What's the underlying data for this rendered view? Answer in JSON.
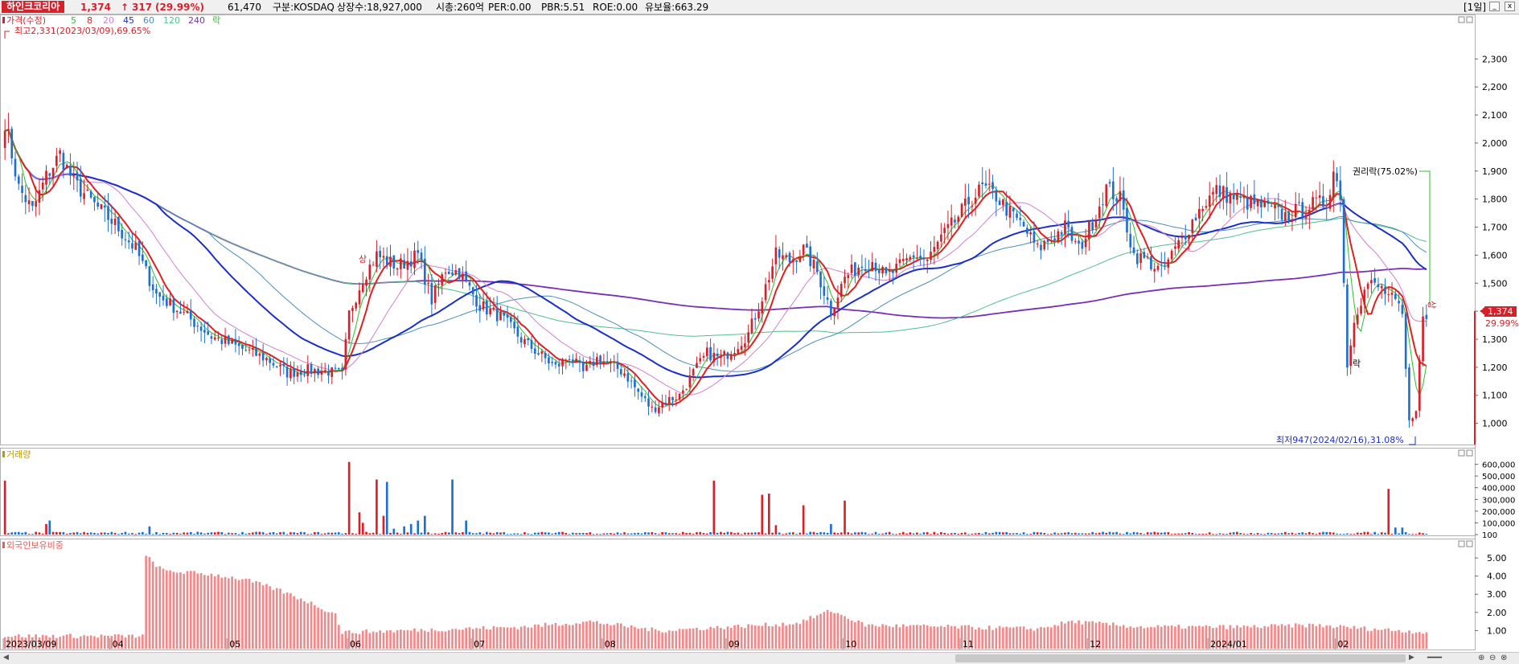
{
  "header": {
    "stock_name": "하인크코리아",
    "price": "1,374",
    "change_arrow": "↑",
    "change": "317",
    "change_pct": "(29.99%)",
    "volume": "61,470",
    "market": "구분:KOSDAQ",
    "shares": "상장수:18,927,000",
    "market_cap": "시총:260억",
    "per": "PER:0.00",
    "pbr": "PBR:5.51",
    "roe": "ROE:0.00",
    "float_ratio": "유보율:663.29",
    "period_button": "[1일]",
    "win_min": "_",
    "win_max": "□",
    "win_close": "x"
  },
  "chart_data": [
    {
      "type": "candlestick",
      "legend": [
        {
          "label": "가격(수정)",
          "color": "#d8202a"
        },
        {
          "label": "5",
          "color": "#2bbf2b"
        },
        {
          "label": "8",
          "color": "#e02020"
        },
        {
          "label": "20",
          "color": "#d080d0"
        },
        {
          "label": "45",
          "color": "#1a2fc8"
        },
        {
          "label": "60",
          "color": "#4a90b8"
        },
        {
          "label": "120",
          "color": "#4fbf8f"
        },
        {
          "label": "240",
          "color": "#7a2fb8"
        },
        {
          "label": "락",
          "color": "#2bbf2b"
        }
      ],
      "ma_colors": {
        "5": "#2bbf2b",
        "8": "#e02020",
        "20": "#d080d0",
        "45": "#1a2fc8",
        "60": "#4a90b8",
        "120": "#4fbf8f",
        "240": "#7a2fb8"
      },
      "ylim": [
        930,
        2450
      ],
      "y_ticks": [
        1000,
        1100,
        1200,
        1300,
        1400,
        1500,
        1600,
        1700,
        1800,
        1900,
        2000,
        2100,
        2200,
        2300
      ],
      "y_tick_labels": [
        "1,000",
        "1,100",
        "1,200",
        "1,300",
        "1,400",
        "1,500",
        "1,600",
        "1,700",
        "1,800",
        "1,900",
        "2,000",
        "2,100",
        "2,200",
        "2,300"
      ],
      "current_price_label": "1,374",
      "current_pct_label": "29.99%",
      "annotations": {
        "high_label": "최고2,331(2023/03/09),69.65%",
        "low_label": "최저947(2024/02/16),31.08%",
        "rights_label": "권리락(75.02%)",
        "sang_mark": "상",
        "rak_mark": "락"
      },
      "anchors": [
        [
          0,
          2080
        ],
        [
          4,
          1840
        ],
        [
          8,
          1760
        ],
        [
          12,
          1880
        ],
        [
          16,
          1960
        ],
        [
          20,
          1860
        ],
        [
          26,
          1780
        ],
        [
          32,
          1710
        ],
        [
          38,
          1620
        ],
        [
          44,
          1460
        ],
        [
          52,
          1390
        ],
        [
          60,
          1310
        ],
        [
          68,
          1270
        ],
        [
          76,
          1230
        ],
        [
          82,
          1180
        ],
        [
          88,
          1190
        ],
        [
          94,
          1185
        ],
        [
          98,
          1175
        ],
        [
          100,
          1390
        ],
        [
          104,
          1520
        ],
        [
          108,
          1600
        ],
        [
          114,
          1560
        ],
        [
          120,
          1600
        ],
        [
          124,
          1440
        ],
        [
          128,
          1550
        ],
        [
          132,
          1540
        ],
        [
          138,
          1420
        ],
        [
          144,
          1380
        ],
        [
          150,
          1300
        ],
        [
          156,
          1240
        ],
        [
          160,
          1200
        ],
        [
          164,
          1240
        ],
        [
          168,
          1180
        ],
        [
          172,
          1230
        ],
        [
          176,
          1210
        ],
        [
          180,
          1180
        ],
        [
          184,
          1110
        ],
        [
          188,
          1050
        ],
        [
          192,
          1080
        ],
        [
          196,
          1100
        ],
        [
          200,
          1180
        ],
        [
          204,
          1250
        ],
        [
          208,
          1230
        ],
        [
          212,
          1270
        ],
        [
          216,
          1320
        ],
        [
          220,
          1450
        ],
        [
          224,
          1600
        ],
        [
          228,
          1580
        ],
        [
          232,
          1620
        ],
        [
          236,
          1540
        ],
        [
          240,
          1400
        ],
        [
          244,
          1520
        ],
        [
          248,
          1560
        ],
        [
          252,
          1580
        ],
        [
          256,
          1520
        ],
        [
          260,
          1560
        ],
        [
          264,
          1600
        ],
        [
          268,
          1580
        ],
        [
          272,
          1660
        ],
        [
          276,
          1720
        ],
        [
          280,
          1790
        ],
        [
          284,
          1840
        ],
        [
          288,
          1810
        ],
        [
          292,
          1750
        ],
        [
          296,
          1700
        ],
        [
          300,
          1620
        ],
        [
          304,
          1660
        ],
        [
          308,
          1700
        ],
        [
          312,
          1620
        ],
        [
          316,
          1720
        ],
        [
          320,
          1840
        ],
        [
          324,
          1800
        ],
        [
          328,
          1600
        ],
        [
          332,
          1580
        ],
        [
          336,
          1540
        ],
        [
          340,
          1620
        ],
        [
          344,
          1700
        ],
        [
          348,
          1780
        ],
        [
          352,
          1830
        ],
        [
          356,
          1810
        ],
        [
          360,
          1790
        ],
        [
          364,
          1780
        ],
        [
          368,
          1760
        ],
        [
          372,
          1740
        ],
        [
          376,
          1760
        ],
        [
          380,
          1780
        ],
        [
          384,
          1790
        ],
        [
          386,
          1900
        ],
        [
          388,
          1820
        ],
        [
          390,
          1200
        ],
        [
          392,
          1380
        ],
        [
          396,
          1500
        ],
        [
          400,
          1480
        ],
        [
          404,
          1430
        ],
        [
          406,
          1380
        ],
        [
          408,
          1000
        ],
        [
          410,
          1060
        ],
        [
          412,
          1374
        ]
      ],
      "n_candles": 414,
      "x_tick_labels": [
        {
          "label": "2023/03/09",
          "i": 0
        },
        {
          "label": "04",
          "i": 31
        },
        {
          "label": "05",
          "i": 65
        },
        {
          "label": "06",
          "i": 100
        },
        {
          "label": "07",
          "i": 136
        },
        {
          "label": "08",
          "i": 174
        },
        {
          "label": "09",
          "i": 210
        },
        {
          "label": "10",
          "i": 244
        },
        {
          "label": "11",
          "i": 278
        },
        {
          "label": "12",
          "i": 315
        },
        {
          "label": "2024/01",
          "i": 350
        },
        {
          "label": "02",
          "i": 387
        }
      ]
    },
    {
      "type": "bar",
      "legend": [
        {
          "label": "거래량",
          "color": "#b89b00"
        }
      ],
      "ylim": [
        0,
        700000
      ],
      "y_ticks": [
        100,
        100000,
        200000,
        300000,
        400000,
        500000,
        600000
      ],
      "y_tick_labels": [
        "100",
        "100,000",
        "200,000",
        "300,000",
        "400,000",
        "500,000",
        "600,000"
      ],
      "spikes": [
        {
          "i": 0,
          "v": 460000
        },
        {
          "i": 12,
          "v": 90000
        },
        {
          "i": 13,
          "v": 120000
        },
        {
          "i": 42,
          "v": 70000
        },
        {
          "i": 100,
          "v": 620000
        },
        {
          "i": 103,
          "v": 190000
        },
        {
          "i": 104,
          "v": 100000
        },
        {
          "i": 108,
          "v": 470000
        },
        {
          "i": 110,
          "v": 160000
        },
        {
          "i": 111,
          "v": 450000
        },
        {
          "i": 113,
          "v": 50000
        },
        {
          "i": 116,
          "v": 70000
        },
        {
          "i": 118,
          "v": 90000
        },
        {
          "i": 120,
          "v": 120000
        },
        {
          "i": 122,
          "v": 160000
        },
        {
          "i": 130,
          "v": 470000
        },
        {
          "i": 134,
          "v": 120000
        },
        {
          "i": 206,
          "v": 460000
        },
        {
          "i": 220,
          "v": 340000
        },
        {
          "i": 222,
          "v": 350000
        },
        {
          "i": 224,
          "v": 80000
        },
        {
          "i": 232,
          "v": 250000
        },
        {
          "i": 240,
          "v": 90000
        },
        {
          "i": 244,
          "v": 290000
        },
        {
          "i": 402,
          "v": 390000
        },
        {
          "i": 404,
          "v": 60000
        },
        {
          "i": 406,
          "v": 60000
        }
      ]
    },
    {
      "type": "bar",
      "legend": [
        {
          "label": "외국인보유비중",
          "color": "#e06060"
        }
      ],
      "ylim": [
        0,
        5.8
      ],
      "y_ticks": [
        1,
        2,
        3,
        4,
        5
      ],
      "y_tick_labels": [
        "1.00",
        "2.00",
        "3.00",
        "4.00",
        "5.00"
      ],
      "series_anchors": [
        [
          0,
          0.7
        ],
        [
          40,
          0.7
        ],
        [
          41,
          5.1
        ],
        [
          46,
          4.3
        ],
        [
          60,
          4.1
        ],
        [
          70,
          3.8
        ],
        [
          80,
          3.2
        ],
        [
          88,
          2.6
        ],
        [
          96,
          1.9
        ],
        [
          98,
          0.9
        ],
        [
          150,
          1.2
        ],
        [
          170,
          1.5
        ],
        [
          190,
          1.0
        ],
        [
          230,
          1.4
        ],
        [
          240,
          2.1
        ],
        [
          250,
          1.3
        ],
        [
          300,
          1.1
        ],
        [
          310,
          1.5
        ],
        [
          330,
          1.2
        ],
        [
          360,
          1.2
        ],
        [
          380,
          1.3
        ],
        [
          414,
          0.9
        ]
      ]
    }
  ]
}
